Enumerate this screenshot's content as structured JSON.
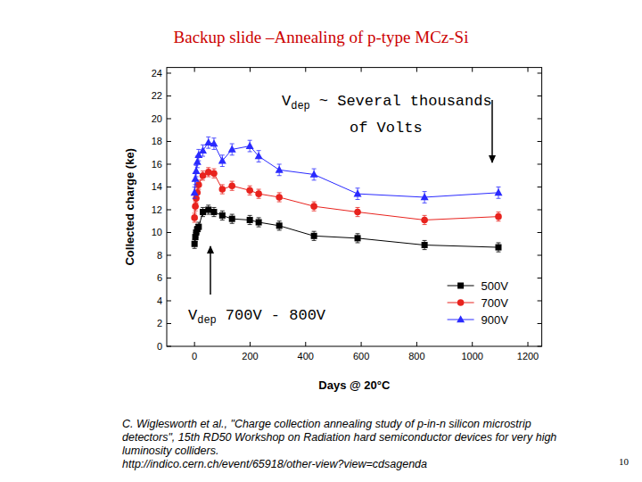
{
  "slide": {
    "title": "Backup slide –Annealing of p-type MCz-Si",
    "citation": [
      "C. Wiglesworth et al., \"Charge collection annealing study of p-in-n silicon microstrip",
      "detectors\", 15th RD50 Workshop on Radiation hard semiconductor devices for very high",
      "luminosity colliders.",
      "http://indico.cern.ch/event/65918/other-view?view=cdsagenda"
    ],
    "page": 10
  },
  "chart_data": {
    "type": "line",
    "x_label": "Days @ 20°C",
    "y_label": "Collected charge (ke)",
    "x": [
      0,
      3,
      6,
      10,
      15,
      30,
      50,
      70,
      100,
      135,
      199,
      231,
      305,
      430,
      587,
      828,
      1094
    ],
    "series": [
      {
        "name": "500V",
        "color": "#000000",
        "marker": "square",
        "line_style": "solid",
        "values": [
          9.0,
          9.6,
          10.0,
          10.3,
          10.5,
          11.8,
          12.0,
          11.8,
          11.5,
          11.2,
          11.1,
          10.9,
          10.6,
          9.7,
          9.5,
          8.9,
          8.7
        ],
        "errors": [
          0.4,
          0.4,
          0.4,
          0.4,
          0.4,
          0.4,
          0.4,
          0.4,
          0.4,
          0.4,
          0.4,
          0.4,
          0.4,
          0.4,
          0.4,
          0.4,
          0.4
        ]
      },
      {
        "name": "700V",
        "color": "#e8231e",
        "marker": "circle",
        "line_style": "solid",
        "values": [
          11.3,
          12.3,
          13.0,
          13.5,
          14.2,
          15.0,
          15.3,
          15.2,
          13.8,
          14.1,
          13.7,
          13.4,
          13.1,
          12.3,
          11.8,
          11.1,
          11.4
        ],
        "errors": [
          0.4,
          0.4,
          0.4,
          0.4,
          0.4,
          0.4,
          0.4,
          0.4,
          0.4,
          0.4,
          0.4,
          0.4,
          0.4,
          0.4,
          0.4,
          0.4,
          0.4
        ]
      },
      {
        "name": "900V",
        "color": "#2a2aff",
        "marker": "triangle",
        "line_style": "solid",
        "values": [
          13.5,
          14.7,
          15.4,
          16.2,
          16.8,
          17.2,
          17.9,
          17.8,
          16.3,
          17.3,
          17.6,
          16.7,
          15.5,
          15.1,
          13.4,
          13.1,
          13.5
        ],
        "errors": [
          0.5,
          0.5,
          0.5,
          0.5,
          0.5,
          0.5,
          0.5,
          0.5,
          0.5,
          0.5,
          0.5,
          0.5,
          0.5,
          0.5,
          0.5,
          0.5,
          0.5
        ]
      }
    ],
    "xlim": [
      -100,
      1250
    ],
    "xticks": [
      0,
      200,
      400,
      600,
      800,
      1000,
      1200
    ],
    "ylim": [
      0,
      24.5
    ],
    "yticks": [
      0,
      2,
      4,
      6,
      8,
      10,
      12,
      14,
      16,
      18,
      20,
      22,
      24
    ],
    "grid": false,
    "legend": "lower right",
    "annotations": [
      {
        "symbol": "V",
        "subscript": "dep",
        "lines": [
          "~ Several thousands",
          "of Volts"
        ]
      },
      {
        "symbol": "V",
        "subscript": "dep",
        "lines": [
          "700V - 800V"
        ]
      }
    ]
  }
}
